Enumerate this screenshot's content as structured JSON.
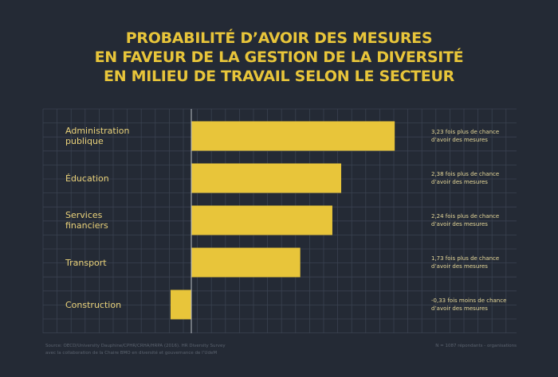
{
  "title_lines": [
    "PROBABILITÉ D’AVOIR DES MESURES",
    "EN FAVEUR DE LA GESTION DE LA DIVERSITÉ",
    "EN MILIEU DE TRAVAIL SELON LE SECTEUR"
  ],
  "colors": {
    "background": "#242a35",
    "accent": "#e8c53a",
    "grid": "#3a4250"
  },
  "chart_data": {
    "type": "bar",
    "orientation": "horizontal",
    "categories": [
      "Administration\npublique",
      "Éducation",
      "Services\nfinanciers",
      "Transport",
      "Construction"
    ],
    "values": [
      3.23,
      2.38,
      2.24,
      1.73,
      -0.33
    ],
    "annotations": [
      "3,23 fois plus de chance\nd’avoir des mesures",
      "2,38 fois plus de chance\nd’avoir des mesures",
      "2,24 fois plus de chance\nd’avoir des mesures",
      "1,73 fois plus de chance\nd’avoir des mesures",
      "-0,33 fois moins de chance\nd’avoir des mesures"
    ],
    "grid": true
  },
  "footer": {
    "source": "Source: OECD/University Dauphine/CPHR/CRHA/HRPA (2016). HR Diversity Survey\navec la collaboration de la Chaire BMO en diversité et gouvernance de l’UdeM",
    "sample": "N = 1087 répondants - organisations"
  }
}
